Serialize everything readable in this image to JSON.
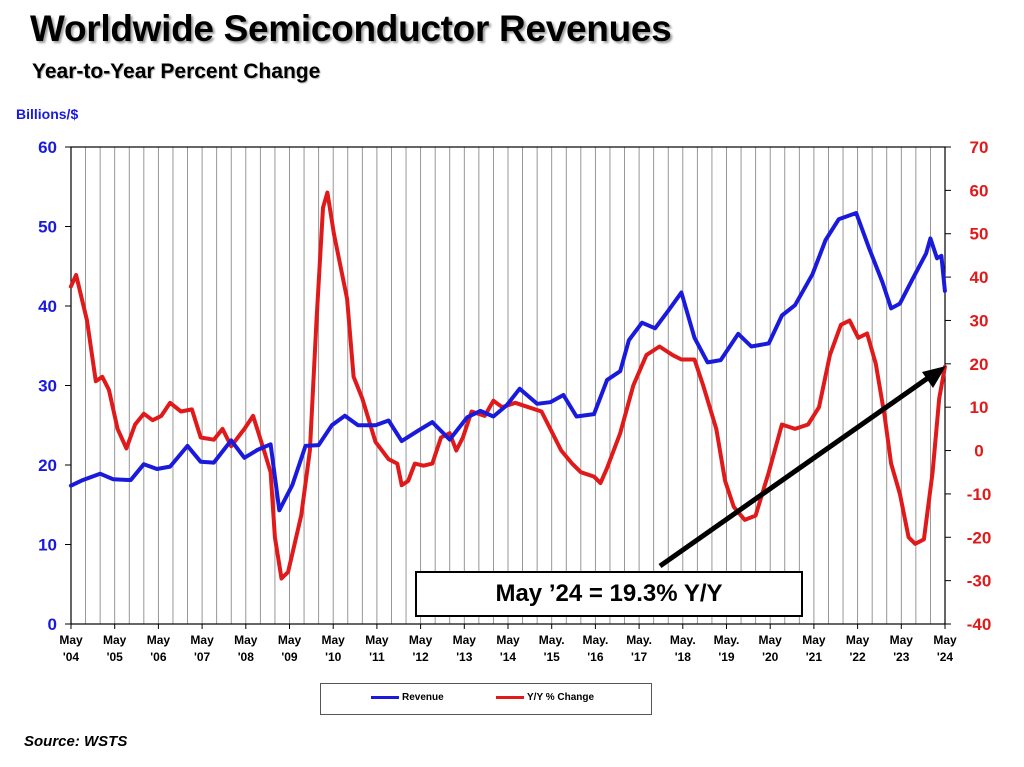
{
  "chart_data": {
    "type": "line",
    "title": "Worldwide Semiconductor Revenues",
    "subtitle": "Year-to-Year Percent Change",
    "ylabel": "Billions/$",
    "ylim": [
      0,
      60
    ],
    "y2lim": [
      -40,
      70
    ],
    "yticks": [
      0,
      10,
      20,
      30,
      40,
      50,
      60
    ],
    "y2ticks": [
      -40,
      -30,
      -20,
      -10,
      0,
      10,
      20,
      30,
      40,
      50,
      60,
      70
    ],
    "xlim": [
      2004.333,
      2024.333
    ],
    "grid": "vertical",
    "legend_position": "bottom-center",
    "x_tick_labels": [
      {
        "top": "May",
        "bottom": "'04"
      },
      {
        "top": "May",
        "bottom": "'05"
      },
      {
        "top": "May",
        "bottom": "'06"
      },
      {
        "top": "May",
        "bottom": "'07"
      },
      {
        "top": "May",
        "bottom": "'08"
      },
      {
        "top": "May",
        "bottom": "'09"
      },
      {
        "top": "May",
        "bottom": "'10"
      },
      {
        "top": "May",
        "bottom": "'11"
      },
      {
        "top": "May",
        "bottom": "'12"
      },
      {
        "top": "May",
        "bottom": "'13"
      },
      {
        "top": "May",
        "bottom": "'14"
      },
      {
        "top": "May.",
        "bottom": "'15"
      },
      {
        "top": "May.",
        "bottom": "'16"
      },
      {
        "top": "May.",
        "bottom": "'17"
      },
      {
        "top": "May.",
        "bottom": "'18"
      },
      {
        "top": "May.",
        "bottom": "'19"
      },
      {
        "top": "May",
        "bottom": "'20"
      },
      {
        "top": "May",
        "bottom": "'21"
      },
      {
        "top": "May",
        "bottom": "'22"
      },
      {
        "top": "May",
        "bottom": "'23"
      },
      {
        "top": "May",
        "bottom": "'24"
      }
    ],
    "series": [
      {
        "name": "Revenue",
        "axis": "left",
        "color": "#1a1adc",
        "points": [
          [
            2004.33,
            17.4
          ],
          [
            2004.6,
            18.1
          ],
          [
            2005.0,
            18.9
          ],
          [
            2005.3,
            18.2
          ],
          [
            2005.7,
            18.1
          ],
          [
            2006.0,
            20.1
          ],
          [
            2006.3,
            19.5
          ],
          [
            2006.6,
            19.8
          ],
          [
            2007.0,
            22.4
          ],
          [
            2007.3,
            20.4
          ],
          [
            2007.6,
            20.3
          ],
          [
            2008.0,
            23.1
          ],
          [
            2008.3,
            20.9
          ],
          [
            2008.6,
            21.9
          ],
          [
            2008.9,
            22.6
          ],
          [
            2009.1,
            14.3
          ],
          [
            2009.4,
            17.5
          ],
          [
            2009.7,
            22.4
          ],
          [
            2010.0,
            22.5
          ],
          [
            2010.3,
            25.0
          ],
          [
            2010.6,
            26.2
          ],
          [
            2010.9,
            25.0
          ],
          [
            2011.3,
            25.0
          ],
          [
            2011.6,
            25.6
          ],
          [
            2011.9,
            23.0
          ],
          [
            2012.3,
            24.4
          ],
          [
            2012.6,
            25.4
          ],
          [
            2013.0,
            23.2
          ],
          [
            2013.4,
            26.0
          ],
          [
            2013.7,
            26.8
          ],
          [
            2014.0,
            26.1
          ],
          [
            2014.3,
            27.5
          ],
          [
            2014.6,
            29.6
          ],
          [
            2015.0,
            27.7
          ],
          [
            2015.3,
            27.9
          ],
          [
            2015.6,
            28.8
          ],
          [
            2015.9,
            26.1
          ],
          [
            2016.3,
            26.4
          ],
          [
            2016.6,
            30.7
          ],
          [
            2016.9,
            31.8
          ],
          [
            2017.1,
            35.7
          ],
          [
            2017.4,
            37.9
          ],
          [
            2017.7,
            37.2
          ],
          [
            2018.0,
            39.4
          ],
          [
            2018.3,
            41.7
          ],
          [
            2018.6,
            36.0
          ],
          [
            2018.9,
            32.9
          ],
          [
            2019.2,
            33.2
          ],
          [
            2019.6,
            36.5
          ],
          [
            2019.9,
            34.9
          ],
          [
            2020.3,
            35.3
          ],
          [
            2020.6,
            38.8
          ],
          [
            2020.9,
            40.1
          ],
          [
            2021.3,
            44.0
          ],
          [
            2021.6,
            48.3
          ],
          [
            2021.9,
            50.9
          ],
          [
            2022.3,
            51.7
          ],
          [
            2022.6,
            47.2
          ],
          [
            2022.9,
            43.0
          ],
          [
            2023.1,
            39.7
          ],
          [
            2023.3,
            40.3
          ],
          [
            2023.6,
            43.5
          ],
          [
            2023.9,
            46.6
          ],
          [
            2024.0,
            48.5
          ],
          [
            2024.15,
            46.0
          ],
          [
            2024.25,
            46.3
          ],
          [
            2024.33,
            41.9
          ]
        ]
      },
      {
        "name": "Y/Y % Change",
        "axis": "right",
        "color": "#e01a1a",
        "points": [
          [
            2004.33,
            37.8
          ],
          [
            2004.45,
            40.5
          ],
          [
            2004.7,
            30
          ],
          [
            2004.9,
            16
          ],
          [
            2005.05,
            17
          ],
          [
            2005.2,
            14
          ],
          [
            2005.4,
            5
          ],
          [
            2005.6,
            0.5
          ],
          [
            2005.8,
            6
          ],
          [
            2006.0,
            8.5
          ],
          [
            2006.2,
            7
          ],
          [
            2006.4,
            8
          ],
          [
            2006.6,
            11
          ],
          [
            2006.85,
            9
          ],
          [
            2007.1,
            9.5
          ],
          [
            2007.3,
            3
          ],
          [
            2007.6,
            2.5
          ],
          [
            2007.8,
            5
          ],
          [
            2008.0,
            1
          ],
          [
            2008.3,
            5
          ],
          [
            2008.5,
            8
          ],
          [
            2008.75,
            0
          ],
          [
            2008.9,
            -5
          ],
          [
            2009.0,
            -20
          ],
          [
            2009.15,
            -29.5
          ],
          [
            2009.3,
            -28
          ],
          [
            2009.6,
            -15
          ],
          [
            2009.8,
            0
          ],
          [
            2009.95,
            30
          ],
          [
            2010.1,
            56
          ],
          [
            2010.2,
            59.5
          ],
          [
            2010.35,
            50
          ],
          [
            2010.65,
            35
          ],
          [
            2010.8,
            17
          ],
          [
            2011.0,
            12
          ],
          [
            2011.3,
            2
          ],
          [
            2011.6,
            -2
          ],
          [
            2011.8,
            -3
          ],
          [
            2011.9,
            -8
          ],
          [
            2012.05,
            -7
          ],
          [
            2012.2,
            -3
          ],
          [
            2012.4,
            -3.5
          ],
          [
            2012.6,
            -3
          ],
          [
            2012.8,
            3
          ],
          [
            2013.0,
            4
          ],
          [
            2013.15,
            0
          ],
          [
            2013.3,
            3
          ],
          [
            2013.5,
            9
          ],
          [
            2013.8,
            8
          ],
          [
            2014.0,
            11.5
          ],
          [
            2014.2,
            10
          ],
          [
            2014.5,
            11
          ],
          [
            2014.8,
            10
          ],
          [
            2015.1,
            9
          ],
          [
            2015.3,
            5
          ],
          [
            2015.55,
            0
          ],
          [
            2015.8,
            -3
          ],
          [
            2016.0,
            -5
          ],
          [
            2016.3,
            -6
          ],
          [
            2016.45,
            -7.5
          ],
          [
            2016.6,
            -4
          ],
          [
            2016.9,
            4
          ],
          [
            2017.2,
            15
          ],
          [
            2017.5,
            22
          ],
          [
            2017.8,
            24
          ],
          [
            2018.1,
            22
          ],
          [
            2018.3,
            21
          ],
          [
            2018.6,
            21
          ],
          [
            2018.8,
            15
          ],
          [
            2019.1,
            5
          ],
          [
            2019.3,
            -7
          ],
          [
            2019.5,
            -13
          ],
          [
            2019.75,
            -16
          ],
          [
            2020.0,
            -15
          ],
          [
            2020.3,
            -5
          ],
          [
            2020.6,
            6
          ],
          [
            2020.9,
            5
          ],
          [
            2021.2,
            6
          ],
          [
            2021.45,
            10
          ],
          [
            2021.7,
            22
          ],
          [
            2021.95,
            29
          ],
          [
            2022.15,
            30
          ],
          [
            2022.35,
            26
          ],
          [
            2022.55,
            27
          ],
          [
            2022.75,
            20
          ],
          [
            2022.95,
            8
          ],
          [
            2023.1,
            -3
          ],
          [
            2023.3,
            -10
          ],
          [
            2023.5,
            -20
          ],
          [
            2023.65,
            -21.5
          ],
          [
            2023.85,
            -20.5
          ],
          [
            2024.05,
            -5
          ],
          [
            2024.2,
            12
          ],
          [
            2024.33,
            19.3
          ]
        ]
      }
    ],
    "annotation": "May ’24 = 19.3% Y/Y",
    "source": "Source: WSTS"
  }
}
